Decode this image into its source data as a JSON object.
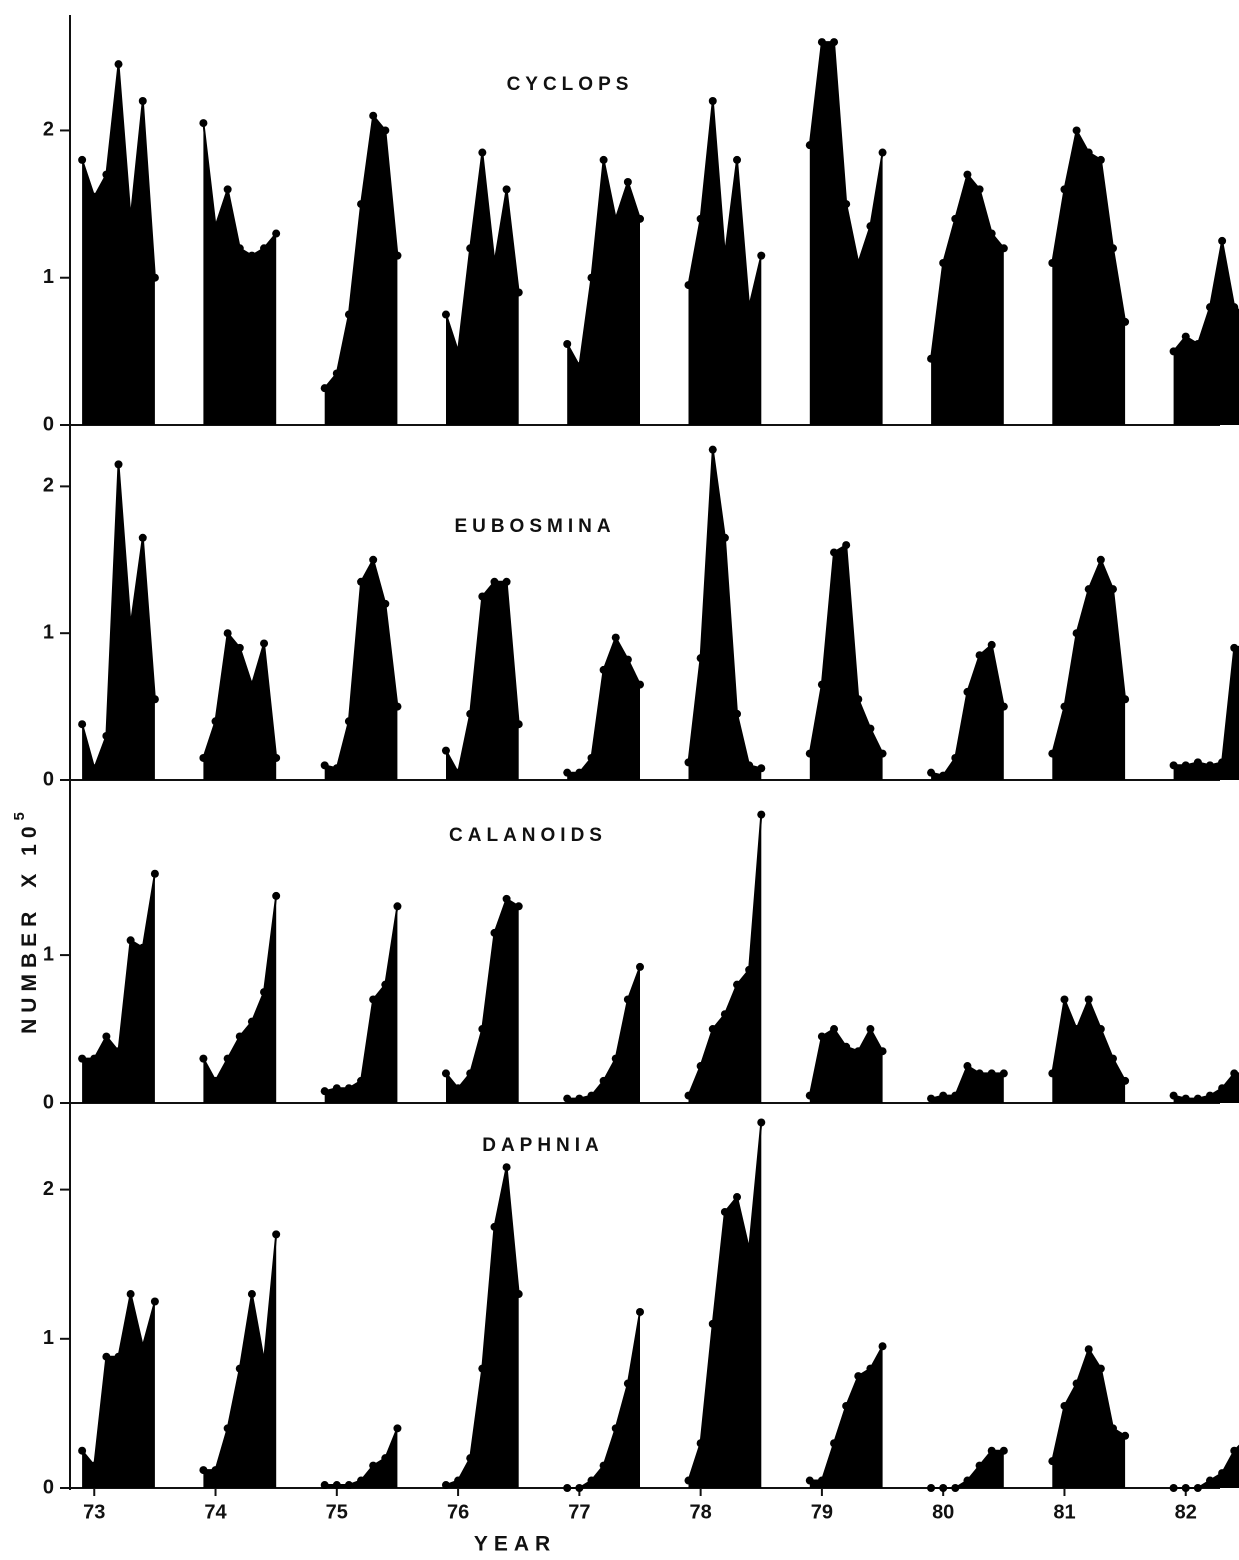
{
  "y_axis_label": {
    "text": "NUMBER",
    "multiplier": "X 10",
    "exponent": "5"
  },
  "x_axis_label": "YEAR",
  "chart_data": [
    {
      "type": "area",
      "title": "CYCLOPS",
      "color": "#000000",
      "ylim": [
        0,
        2.75
      ],
      "yticks": [
        0,
        1,
        2
      ],
      "xlim": [
        72.8,
        82.2
      ],
      "x": [
        72.9,
        73,
        73.1,
        73.2,
        73.3,
        73.4,
        73.5,
        null,
        73.9,
        74,
        74.1,
        74.2,
        74.3,
        74.4,
        74.5,
        null,
        74.9,
        75,
        75.1,
        75.2,
        75.3,
        75.4,
        75.5,
        null,
        75.9,
        76,
        76.1,
        76.2,
        76.3,
        76.4,
        76.5,
        null,
        76.9,
        77,
        77.1,
        77.2,
        77.3,
        77.4,
        77.5,
        null,
        77.9,
        78,
        78.1,
        78.2,
        78.3,
        78.4,
        78.5,
        null,
        78.9,
        79,
        79.1,
        79.2,
        79.3,
        79.4,
        79.5,
        null,
        79.9,
        80,
        80.1,
        80.2,
        80.3,
        80.4,
        80.5,
        null,
        80.9,
        81,
        81.1,
        81.2,
        81.3,
        81.4,
        81.5,
        null,
        81.9,
        82,
        82.1,
        82.2,
        82.3,
        82.4,
        82.5
      ],
      "values": [
        1.8,
        1.55,
        1.7,
        2.45,
        1.4,
        2.2,
        1.0,
        null,
        2.05,
        1.35,
        1.6,
        1.2,
        1.15,
        1.2,
        1.3,
        null,
        0.25,
        0.35,
        0.75,
        1.5,
        2.1,
        2.0,
        1.15,
        null,
        0.75,
        0.5,
        1.2,
        1.85,
        1.1,
        1.6,
        0.9,
        null,
        0.55,
        0.4,
        1.0,
        1.8,
        1.4,
        1.65,
        1.4,
        null,
        0.95,
        1.4,
        2.2,
        1.15,
        1.8,
        0.8,
        1.15,
        null,
        1.9,
        2.6,
        2.6,
        1.5,
        1.1,
        1.35,
        1.85,
        null,
        0.45,
        1.1,
        1.4,
        1.7,
        1.6,
        1.3,
        1.2,
        null,
        1.1,
        1.6,
        2.0,
        1.85,
        1.8,
        1.2,
        0.7,
        null,
        0.5,
        0.6,
        0.55,
        0.8,
        1.25,
        0.8,
        0.75
      ]
    },
    {
      "type": "area",
      "title": "EUBOSMINA",
      "color": "#000000",
      "ylim": [
        0,
        2.35
      ],
      "yticks": [
        0,
        1,
        2
      ],
      "xlim": [
        72.8,
        82.2
      ],
      "x": [
        72.9,
        73,
        73.1,
        73.2,
        73.3,
        73.4,
        73.5,
        null,
        73.9,
        74,
        74.1,
        74.2,
        74.3,
        74.4,
        74.5,
        null,
        74.9,
        75,
        75.1,
        75.2,
        75.3,
        75.4,
        75.5,
        null,
        75.9,
        76,
        76.1,
        76.2,
        76.3,
        76.4,
        76.5,
        null,
        76.9,
        77,
        77.1,
        77.2,
        77.3,
        77.4,
        77.5,
        null,
        77.9,
        78,
        78.1,
        78.2,
        78.3,
        78.4,
        78.5,
        null,
        78.9,
        79,
        79.1,
        79.2,
        79.3,
        79.4,
        79.5,
        null,
        79.9,
        80,
        80.1,
        80.2,
        80.3,
        80.4,
        80.5,
        null,
        80.9,
        81,
        81.1,
        81.2,
        81.3,
        81.4,
        81.5,
        null,
        81.9,
        82,
        82.1,
        82.2,
        82.3,
        82.4,
        82.5
      ],
      "values": [
        0.38,
        0.08,
        0.3,
        2.15,
        1.05,
        1.65,
        0.55,
        null,
        0.15,
        0.4,
        1.0,
        0.9,
        0.65,
        0.93,
        0.15,
        null,
        0.1,
        0.08,
        0.4,
        1.35,
        1.5,
        1.2,
        0.5,
        null,
        0.2,
        0.05,
        0.45,
        1.25,
        1.35,
        1.35,
        0.38,
        null,
        0.05,
        0.05,
        0.15,
        0.75,
        0.97,
        0.82,
        0.65,
        null,
        0.12,
        0.83,
        2.25,
        1.65,
        0.45,
        0.1,
        0.08,
        null,
        0.18,
        0.65,
        1.55,
        1.6,
        0.55,
        0.35,
        0.18,
        null,
        0.05,
        0.03,
        0.15,
        0.6,
        0.85,
        0.92,
        0.5,
        null,
        0.18,
        0.5,
        1.0,
        1.3,
        1.5,
        1.3,
        0.55,
        null,
        0.1,
        0.1,
        0.12,
        0.1,
        0.12,
        0.9,
        0.92
      ]
    },
    {
      "type": "area",
      "title": "CALANOIDS",
      "color": "#000000",
      "ylim": [
        0,
        2.15
      ],
      "yticks": [
        0,
        1
      ],
      "xlim": [
        72.8,
        82.2
      ],
      "x": [
        72.9,
        73,
        73.1,
        73.2,
        73.3,
        73.4,
        73.5,
        null,
        73.9,
        74,
        74.1,
        74.2,
        74.3,
        74.4,
        74.5,
        null,
        74.9,
        75,
        75.1,
        75.2,
        75.3,
        75.4,
        75.5,
        null,
        75.9,
        76,
        76.1,
        76.2,
        76.3,
        76.4,
        76.5,
        null,
        76.9,
        77,
        77.1,
        77.2,
        77.3,
        77.4,
        77.5,
        null,
        77.9,
        78,
        78.1,
        78.2,
        78.3,
        78.4,
        78.5,
        null,
        78.9,
        79,
        79.1,
        79.2,
        79.3,
        79.4,
        79.5,
        null,
        79.9,
        80,
        80.1,
        80.2,
        80.3,
        80.4,
        80.5,
        null,
        80.9,
        81,
        81.1,
        81.2,
        81.3,
        81.4,
        81.5,
        null,
        81.9,
        82,
        82.1,
        82.2,
        82.3,
        82.4,
        82.5
      ],
      "values": [
        0.3,
        0.3,
        0.45,
        0.35,
        1.1,
        1.05,
        1.55,
        null,
        0.3,
        0.15,
        0.3,
        0.45,
        0.55,
        0.75,
        1.4,
        null,
        0.08,
        0.1,
        0.1,
        0.15,
        0.7,
        0.8,
        1.33,
        null,
        0.2,
        0.1,
        0.2,
        0.5,
        1.15,
        1.38,
        1.33,
        null,
        0.03,
        0.03,
        0.05,
        0.15,
        0.3,
        0.7,
        0.92,
        null,
        0.05,
        0.25,
        0.5,
        0.6,
        0.8,
        0.9,
        1.95,
        null,
        0.05,
        0.45,
        0.5,
        0.38,
        0.35,
        0.5,
        0.35,
        null,
        0.03,
        0.05,
        0.05,
        0.25,
        0.2,
        0.2,
        0.2,
        null,
        0.2,
        0.7,
        0.5,
        0.7,
        0.5,
        0.3,
        0.15,
        null,
        0.05,
        0.03,
        0.03,
        0.05,
        0.1,
        0.2,
        0.2
      ]
    },
    {
      "type": "area",
      "title": "DAPHNIA",
      "color": "#000000",
      "ylim": [
        0,
        2.5
      ],
      "yticks": [
        0,
        1,
        2
      ],
      "xlim": [
        72.8,
        82.2
      ],
      "xticks": [
        73,
        74,
        75,
        76,
        77,
        78,
        79,
        80,
        81,
        82
      ],
      "x": [
        72.9,
        73,
        73.1,
        73.2,
        73.3,
        73.4,
        73.5,
        null,
        73.9,
        74,
        74.1,
        74.2,
        74.3,
        74.4,
        74.5,
        null,
        74.9,
        75,
        75.1,
        75.2,
        75.3,
        75.4,
        75.5,
        null,
        75.9,
        76,
        76.1,
        76.2,
        76.3,
        76.4,
        76.5,
        null,
        76.9,
        77,
        77.1,
        77.2,
        77.3,
        77.4,
        77.5,
        null,
        77.9,
        78,
        78.1,
        78.2,
        78.3,
        78.4,
        78.5,
        null,
        78.9,
        79,
        79.1,
        79.2,
        79.3,
        79.4,
        79.5,
        null,
        79.9,
        80,
        80.1,
        80.2,
        80.3,
        80.4,
        80.5,
        null,
        80.9,
        81,
        81.1,
        81.2,
        81.3,
        81.4,
        81.5,
        null,
        81.9,
        82,
        82.1,
        82.2,
        82.3,
        82.4,
        82.5
      ],
      "values": [
        0.25,
        0.15,
        0.88,
        0.88,
        1.3,
        0.95,
        1.25,
        null,
        0.12,
        0.12,
        0.4,
        0.8,
        1.3,
        0.85,
        1.7,
        null,
        0.02,
        0.02,
        0.02,
        0.05,
        0.15,
        0.2,
        0.4,
        null,
        0.02,
        0.05,
        0.2,
        0.8,
        1.75,
        2.15,
        1.3,
        null,
        0,
        0,
        0.05,
        0.15,
        0.4,
        0.7,
        1.18,
        null,
        0.05,
        0.3,
        1.1,
        1.85,
        1.95,
        1.6,
        2.45,
        null,
        0.05,
        0.05,
        0.3,
        0.55,
        0.75,
        0.8,
        0.95,
        null,
        0,
        0,
        0,
        0.05,
        0.15,
        0.25,
        0.25,
        null,
        0.18,
        0.55,
        0.7,
        0.93,
        0.8,
        0.4,
        0.35,
        null,
        0,
        0,
        0,
        0.05,
        0.1,
        0.25,
        0.33
      ]
    }
  ]
}
